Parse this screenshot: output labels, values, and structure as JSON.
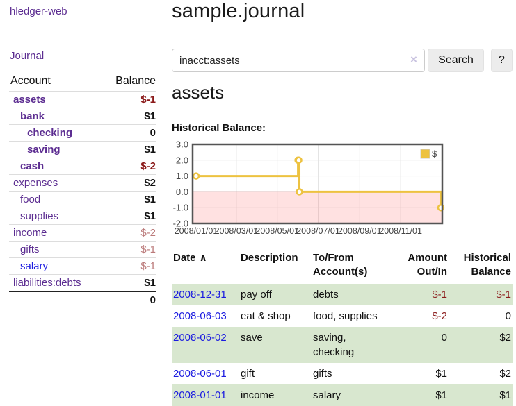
{
  "colors": {
    "chart_line": "#edc240",
    "chart_marker_fill": "#ffffff",
    "chart_fill_negative": "rgba(255,70,70,0.16)",
    "zero_line": "#8b0000",
    "grid": "#e3e3e3",
    "chart_border": "#545454",
    "tick_text": "#444444",
    "purple_link": "#5c2d91",
    "blue_link": "#1b1be0",
    "negative_red": "#8b1a1a",
    "negative_pink": "#bb7a7a",
    "row_green": "#d8e7cf"
  },
  "sidebar": {
    "brand": "hledger-web",
    "journal_link": "Journal",
    "headers": {
      "account": "Account",
      "balance": "Balance"
    },
    "accounts": [
      {
        "name": "assets",
        "indent": 0,
        "bold": true,
        "balance": "$-1",
        "neg": true
      },
      {
        "name": "bank",
        "indent": 1,
        "bold": true,
        "balance": "$1"
      },
      {
        "name": "checking",
        "indent": 2,
        "bold": true,
        "balance": "0"
      },
      {
        "name": "saving",
        "indent": 2,
        "bold": true,
        "balance": "$1"
      },
      {
        "name": "cash",
        "indent": 1,
        "bold": true,
        "balance": "$-2",
        "neg": true
      },
      {
        "name": "expenses",
        "indent": 0,
        "bold": false,
        "balance": "$2"
      },
      {
        "name": "food",
        "indent": 1,
        "bold": false,
        "balance": "$1"
      },
      {
        "name": "supplies",
        "indent": 1,
        "bold": false,
        "balance": "$1"
      },
      {
        "name": "income",
        "indent": 0,
        "bold": false,
        "balance": "$-2",
        "pink": true
      },
      {
        "name": "gifts",
        "indent": 1,
        "bold": false,
        "balance": "$-1",
        "pink": true
      },
      {
        "name": "salary",
        "indent": 1,
        "bold": false,
        "balance": "$-1",
        "pink": true,
        "blue": true
      },
      {
        "name": "liabilities:debts",
        "indent": 0,
        "bold": false,
        "balance": "$1"
      }
    ],
    "total": "0"
  },
  "main": {
    "title": "sample.journal",
    "search": {
      "value": "inacct:assets",
      "clear_icon": "×",
      "button_label": "Search",
      "help_label": "?"
    },
    "account_heading": "assets",
    "chart_label": "Historical Balance:"
  },
  "chart_data": {
    "type": "line",
    "title": "Historical Balance",
    "steps": true,
    "legend": "$",
    "legend_position": "top-right",
    "grid": true,
    "ylim": [
      -2,
      3
    ],
    "x_range": [
      "2008-01-01",
      "2008-12-31"
    ],
    "y_ticks": [
      3.0,
      2.0,
      1.0,
      0.0,
      -1.0,
      -2.0
    ],
    "x_ticks": [
      "2008/01/01",
      "2008/03/01",
      "2008/05/01",
      "2008/07/01",
      "2008/09/01",
      "2008/11/01"
    ],
    "series": [
      {
        "name": "$",
        "points": [
          [
            "2008-01-01",
            1
          ],
          [
            "2008-06-01",
            2
          ],
          [
            "2008-06-02",
            2
          ],
          [
            "2008-06-03",
            0
          ],
          [
            "2008-12-31",
            -1
          ]
        ]
      }
    ],
    "negative_region_shaded": true
  },
  "table": {
    "headers": {
      "date": "Date",
      "sort_icon": "∧",
      "description": "Description",
      "accounts": "To/From Account(s)",
      "amount": "Amount Out/In",
      "balance": "Historical Balance"
    },
    "rows": [
      {
        "date": "2008-12-31",
        "description": "pay off",
        "accounts": "debts",
        "amount": "$-1",
        "amount_neg": true,
        "balance": "$-1",
        "balance_neg": true,
        "green": true
      },
      {
        "date": "2008-06-03",
        "description": "eat & shop",
        "accounts": "food, supplies",
        "amount": "$-2",
        "amount_neg": true,
        "balance": "0",
        "green": false
      },
      {
        "date": "2008-06-02",
        "description": "save",
        "accounts": "saving,\nchecking",
        "amount": "0",
        "balance": "$2",
        "green": true
      },
      {
        "date": "2008-06-01",
        "description": "gift",
        "accounts": "gifts",
        "amount": "$1",
        "balance": "$2",
        "green": false
      },
      {
        "date": "2008-01-01",
        "description": "income",
        "accounts": "salary",
        "amount": "$1",
        "balance": "$1",
        "green": true
      }
    ]
  }
}
